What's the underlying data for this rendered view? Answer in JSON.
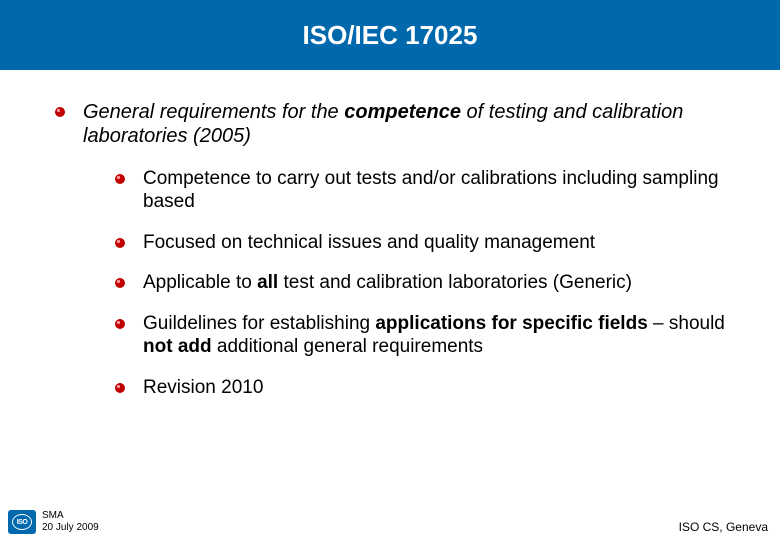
{
  "title": "ISO/IEC 17025",
  "main_bullet": {
    "pre": "General requirements for the ",
    "bold": "competence",
    "post": " of testing and calibration laboratories (2005)"
  },
  "sub_bullets": [
    {
      "html": "Competence to carry out tests  and/or calibrations including sampling based"
    },
    {
      "html": "Focused on technical issues and quality management"
    },
    {
      "html": "Applicable to <b>all</b> test and calibration laboratories (Generic)"
    },
    {
      "html": "Guildelines for establishing <b>applications for specific fields</b> – should <b>not add</b> additional general requirements"
    },
    {
      "html": "Revision 2010"
    }
  ],
  "footer": {
    "logo_text": "ISO",
    "author": "SMA",
    "date": "20 July 2009",
    "org": "ISO CS, Geneva"
  },
  "colors": {
    "header_bg": "#0068ac",
    "bullet_fill": "#c00000",
    "bullet_highlight": "#ff9999",
    "text": "#000000",
    "title_text": "#ffffff"
  }
}
